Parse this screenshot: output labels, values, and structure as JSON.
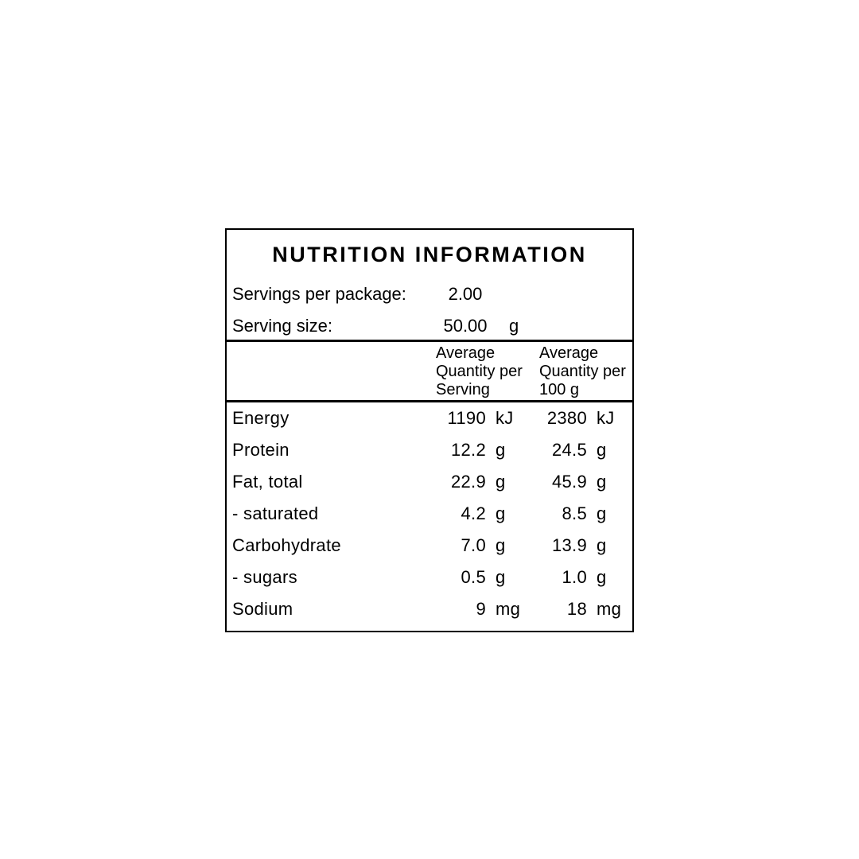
{
  "panel": {
    "title": "NUTRITION INFORMATION",
    "serving_info": {
      "rows": [
        {
          "label": "Servings per package:",
          "value": "2.00",
          "unit": ""
        },
        {
          "label": "Serving size:",
          "value": "50.00",
          "unit": "g"
        }
      ]
    },
    "column_headers": {
      "per_serving": {
        "line1": "Average",
        "line2": "Quantity per",
        "line3": "Serving"
      },
      "per_100g": {
        "line1": "Average",
        "line2": "Quantity per",
        "line3": "100 g"
      }
    },
    "nutrients": [
      {
        "name": "Energy",
        "per_serving_value": "1190",
        "per_serving_unit": "kJ",
        "per_100g_value": "2380",
        "per_100g_unit": "kJ"
      },
      {
        "name": "Protein",
        "per_serving_value": "12.2",
        "per_serving_unit": "g",
        "per_100g_value": "24.5",
        "per_100g_unit": "g"
      },
      {
        "name": "Fat, total",
        "per_serving_value": "22.9",
        "per_serving_unit": "g",
        "per_100g_value": "45.9",
        "per_100g_unit": "g"
      },
      {
        "name": "- saturated",
        "per_serving_value": "4.2",
        "per_serving_unit": "g",
        "per_100g_value": "8.5",
        "per_100g_unit": "g"
      },
      {
        "name": "Carbohydrate",
        "per_serving_value": "7.0",
        "per_serving_unit": "g",
        "per_100g_value": "13.9",
        "per_100g_unit": "g"
      },
      {
        "name": "- sugars",
        "per_serving_value": "0.5",
        "per_serving_unit": "g",
        "per_100g_value": "1.0",
        "per_100g_unit": "g"
      },
      {
        "name": "Sodium",
        "per_serving_value": "9",
        "per_serving_unit": "mg",
        "per_100g_value": "18",
        "per_100g_unit": "mg"
      }
    ],
    "colors": {
      "border": "#000000",
      "text": "#000000",
      "background": "#ffffff"
    }
  }
}
